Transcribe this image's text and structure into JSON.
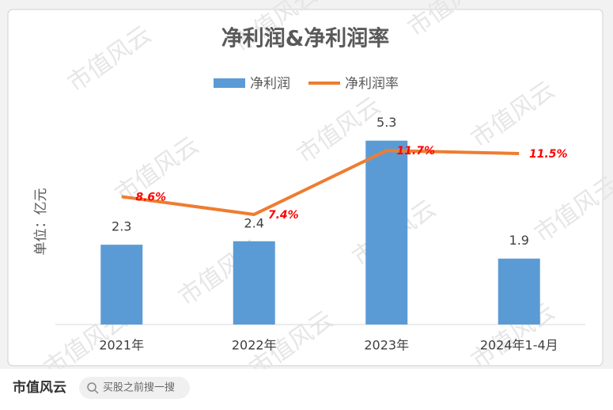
{
  "chart_data": {
    "type": "bar",
    "title": "净利润&净利润率",
    "y_label": "单位：亿元",
    "categories": [
      "2021年",
      "2022年",
      "2023年",
      "2024年1-4月"
    ],
    "series": [
      {
        "name": "净利润",
        "type": "bar",
        "color": "#5b9bd5",
        "values": [
          2.3,
          2.4,
          5.3,
          1.9
        ]
      },
      {
        "name": "净利润率",
        "type": "line",
        "axis": "y2",
        "color": "#ed7d31",
        "values": [
          8.6,
          7.4,
          11.7,
          11.5
        ],
        "value_labels": [
          "8.6%",
          "7.4%",
          "11.7%",
          "11.5%"
        ]
      }
    ],
    "ylim": [
      0,
      6
    ],
    "y2lim": [
      0,
      14
    ],
    "legend": "top"
  },
  "watermark": "市值风云",
  "footer": {
    "brand": "市值风云",
    "search": "买股之前搜一搜"
  }
}
